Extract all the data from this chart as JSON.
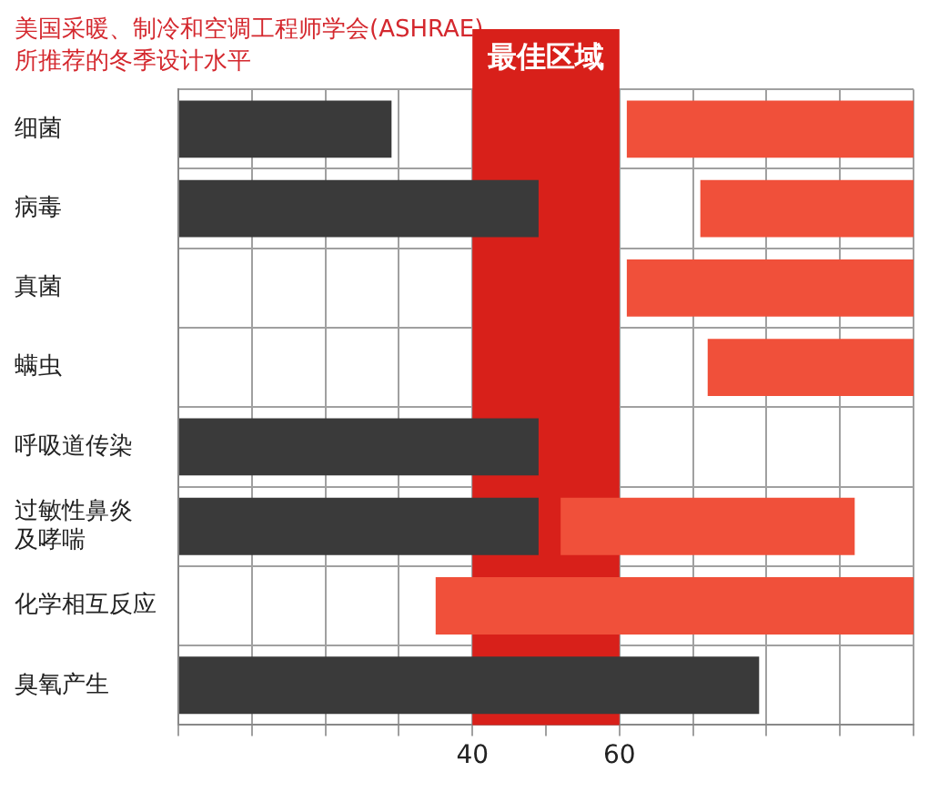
{
  "chart_data": {
    "type": "bar",
    "orientation": "horizontal",
    "title": "美国采暖、制冷和空调工程师学会(ASHRAE)\n所推荐的冬季设计水平",
    "categories": [
      "细菌",
      "病毒",
      "真菌",
      "螨虫",
      "呼吸道传染",
      "过敏性鼻炎及哮喘",
      "化学相互反应",
      "臭氧产生"
    ],
    "series": [
      {
        "color": "#3a3a3a",
        "base": [
          0,
          0,
          null,
          null,
          0,
          0,
          null,
          0
        ],
        "values": [
          29,
          49,
          null,
          null,
          49,
          49,
          null,
          79
        ]
      },
      {
        "color": "#f0503a",
        "base": [
          61,
          71,
          61,
          72,
          null,
          52,
          35,
          null
        ],
        "values": [
          39,
          29,
          39,
          28,
          null,
          40,
          65,
          null
        ]
      }
    ],
    "xlim": [
      0,
      100
    ],
    "xticks": [
      {
        "value": 0,
        "label": null
      },
      {
        "value": 10,
        "label": null
      },
      {
        "value": 20,
        "label": null
      },
      {
        "value": 30,
        "label": null
      },
      40,
      {
        "value": 50,
        "label": null
      },
      60,
      {
        "value": 70,
        "label": null
      },
      {
        "value": 80,
        "label": null
      },
      {
        "value": 90,
        "label": null
      },
      {
        "value": 100,
        "label": null
      }
    ],
    "bands": [
      {
        "axis": "x",
        "from": 40,
        "to": 60,
        "label": "最佳区域",
        "color": "#d8201a"
      }
    ],
    "grid": true,
    "legend": false
  }
}
